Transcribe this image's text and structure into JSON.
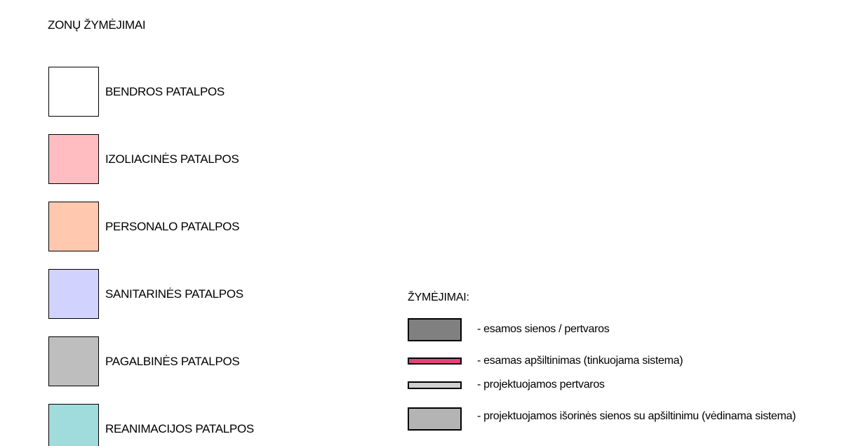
{
  "zones": {
    "title": "ZONŲ ŽYMĖJIMAI",
    "items": [
      {
        "label": "BENDROS PATALPOS",
        "color": "#FFFFFF"
      },
      {
        "label": "IZOLIACINĖS PATALPOS",
        "color": "#FFBDC1"
      },
      {
        "label": "PERSONALO PATALPOS",
        "color": "#FFC8AF"
      },
      {
        "label": "SANITARINĖS PATALPOS",
        "color": "#D2D2FF"
      },
      {
        "label": "PAGALBINĖS PATALPOS",
        "color": "#BEBEBE"
      },
      {
        "label": "REANIMACIJOS PATALPOS",
        "color": "#A0DCDC"
      }
    ]
  },
  "legend": {
    "title": "ŽYMĖJIMAI:",
    "items": [
      {
        "label": "- esamos sienos / pertvaros",
        "color": "#808080"
      },
      {
        "label": "- esamas apšiltinimas (tinkuojama sistema)",
        "color": "#E8427A"
      },
      {
        "label": "- projektuojamos pertvaros",
        "color": "#D0D0D0"
      },
      {
        "label": "- projektuojamos išorinės sienos su apšiltinimu (vėdinama sistema)",
        "color": "#B4B4B4"
      }
    ]
  }
}
